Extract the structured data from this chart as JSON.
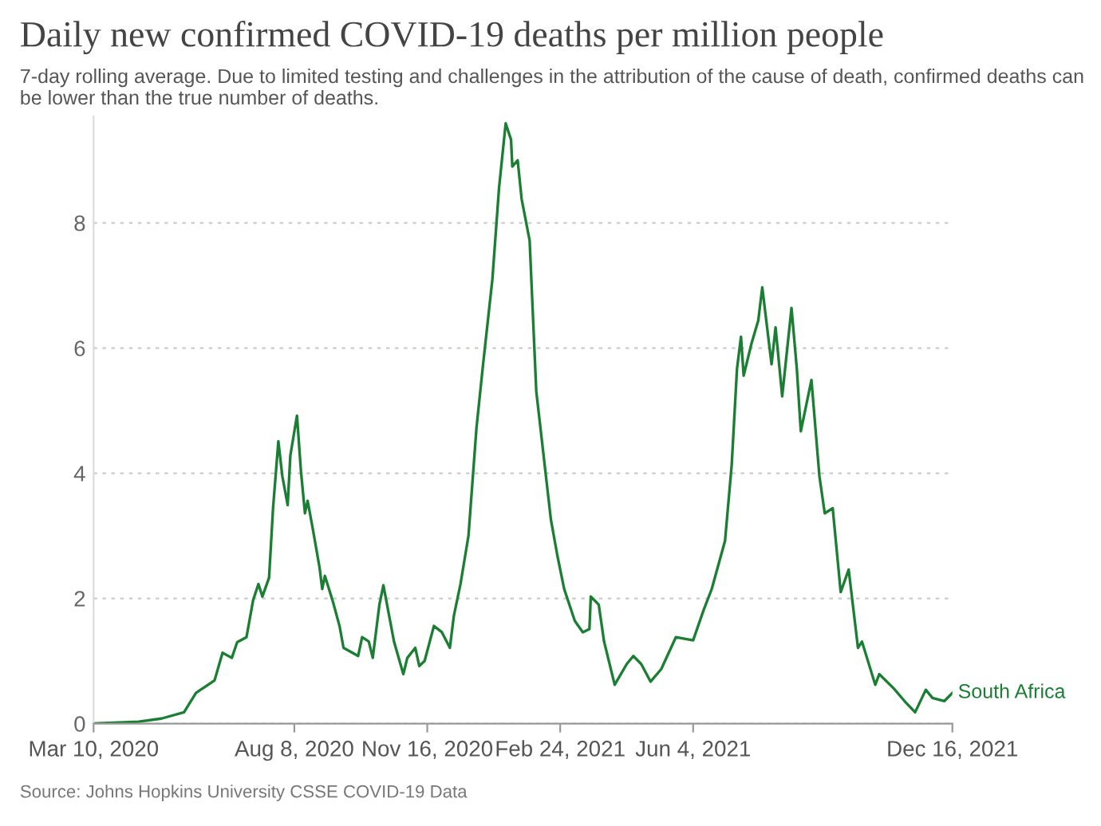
{
  "chart_data": {
    "type": "line",
    "title": "Daily new confirmed COVID-19 deaths per million people",
    "subtitle": "7-day rolling average. Due to limited testing and challenges in the attribution of the cause of death, confirmed deaths can be lower than the true number of deaths.",
    "annotations": [
      "Source: Johns Hopkins University CSSE COVID-19 Data"
    ],
    "xlim": [
      "2020-03-10",
      "2021-12-16"
    ],
    "xticks": [
      {
        "value": "2020-03-10",
        "label": "Mar 10, 2020"
      },
      {
        "value": "2020-08-08",
        "label": "Aug 8, 2020"
      },
      {
        "value": "2020-11-16",
        "label": "Nov 16, 2020"
      },
      {
        "value": "2021-02-24",
        "label": "Feb 24, 2021"
      },
      {
        "value": "2021-06-04",
        "label": "Jun 4, 2021"
      },
      {
        "value": "2021-12-16",
        "label": "Dec 16, 2021"
      }
    ],
    "ylim": [
      0,
      9.7
    ],
    "yticks": [
      0,
      2,
      4,
      6,
      8
    ],
    "grid": "y",
    "legend": false,
    "series": [
      {
        "name": "South Africa",
        "color": "#1a7f33",
        "x": [
          "2020-03-10",
          "2020-04-13",
          "2020-04-30",
          "2020-05-17",
          "2020-05-26",
          "2020-06-09",
          "2020-06-15",
          "2020-06-22",
          "2020-06-26",
          "2020-07-03",
          "2020-07-08",
          "2020-07-12",
          "2020-07-15",
          "2020-07-20",
          "2020-07-23",
          "2020-07-27",
          "2020-07-30",
          "2020-08-03",
          "2020-08-05",
          "2020-08-10",
          "2020-08-13",
          "2020-08-16",
          "2020-08-18",
          "2020-08-22",
          "2020-08-27",
          "2020-08-29",
          "2020-08-31",
          "2020-09-06",
          "2020-09-11",
          "2020-09-14",
          "2020-09-25",
          "2020-09-28",
          "2020-10-03",
          "2020-10-06",
          "2020-10-11",
          "2020-10-14",
          "2020-10-22",
          "2020-10-29",
          "2020-11-01",
          "2020-11-07",
          "2020-11-10",
          "2020-11-14",
          "2020-11-21",
          "2020-11-27",
          "2020-12-03",
          "2020-12-06",
          "2020-12-11",
          "2020-12-17",
          "2020-12-23",
          "2020-12-28",
          "2021-01-04",
          "2021-01-09",
          "2021-01-14",
          "2021-01-18",
          "2021-01-19",
          "2021-01-23",
          "2021-01-26",
          "2021-02-01",
          "2021-02-06",
          "2021-02-17",
          "2021-02-22",
          "2021-02-27",
          "2021-03-07",
          "2021-03-13",
          "2021-03-18",
          "2021-03-19",
          "2021-03-25",
          "2021-03-29",
          "2021-04-06",
          "2021-04-15",
          "2021-04-20",
          "2021-04-26",
          "2021-05-03",
          "2021-05-11",
          "2021-05-22",
          "2021-06-04",
          "2021-06-12",
          "2021-06-18",
          "2021-06-28",
          "2021-07-03",
          "2021-07-07",
          "2021-07-10",
          "2021-07-12",
          "2021-07-18",
          "2021-07-23",
          "2021-07-26",
          "2021-08-02",
          "2021-08-05",
          "2021-08-10",
          "2021-08-17",
          "2021-08-21",
          "2021-08-24",
          "2021-09-01",
          "2021-09-07",
          "2021-09-11",
          "2021-09-17",
          "2021-09-23",
          "2021-09-29",
          "2021-10-06",
          "2021-10-09",
          "2021-10-19",
          "2021-10-22",
          "2021-11-02",
          "2021-11-10",
          "2021-11-18",
          "2021-11-26",
          "2021-12-01",
          "2021-12-10",
          "2021-12-16"
        ],
        "values": [
          0,
          0.03,
          0.08,
          0.18,
          0.49,
          0.69,
          1.13,
          1.05,
          1.3,
          1.38,
          1.97,
          2.23,
          2.03,
          2.33,
          3.44,
          4.51,
          3.95,
          3.49,
          4.28,
          4.92,
          4.03,
          3.36,
          3.56,
          3.1,
          2.49,
          2.15,
          2.36,
          1.95,
          1.56,
          1.21,
          1.08,
          1.38,
          1.31,
          1.05,
          1.9,
          2.21,
          1.31,
          0.79,
          1.05,
          1.21,
          0.92,
          1.0,
          1.56,
          1.46,
          1.21,
          1.72,
          2.23,
          3.0,
          4.72,
          5.74,
          7.1,
          8.56,
          9.59,
          9.33,
          8.9,
          9.0,
          8.38,
          7.72,
          5.31,
          3.26,
          2.67,
          2.15,
          1.64,
          1.46,
          1.51,
          2.03,
          1.9,
          1.31,
          0.62,
          0.95,
          1.08,
          0.95,
          0.67,
          0.87,
          1.38,
          1.33,
          1.82,
          2.15,
          2.92,
          4.13,
          5.67,
          6.18,
          5.56,
          6.08,
          6.44,
          6.97,
          5.74,
          6.33,
          5.23,
          6.64,
          5.67,
          4.67,
          5.49,
          3.95,
          3.36,
          3.44,
          2.1,
          2.46,
          1.21,
          1.31,
          0.62,
          0.79,
          0.56,
          0.36,
          0.18,
          0.54,
          0.41,
          0.36,
          0.49
        ]
      }
    ]
  }
}
